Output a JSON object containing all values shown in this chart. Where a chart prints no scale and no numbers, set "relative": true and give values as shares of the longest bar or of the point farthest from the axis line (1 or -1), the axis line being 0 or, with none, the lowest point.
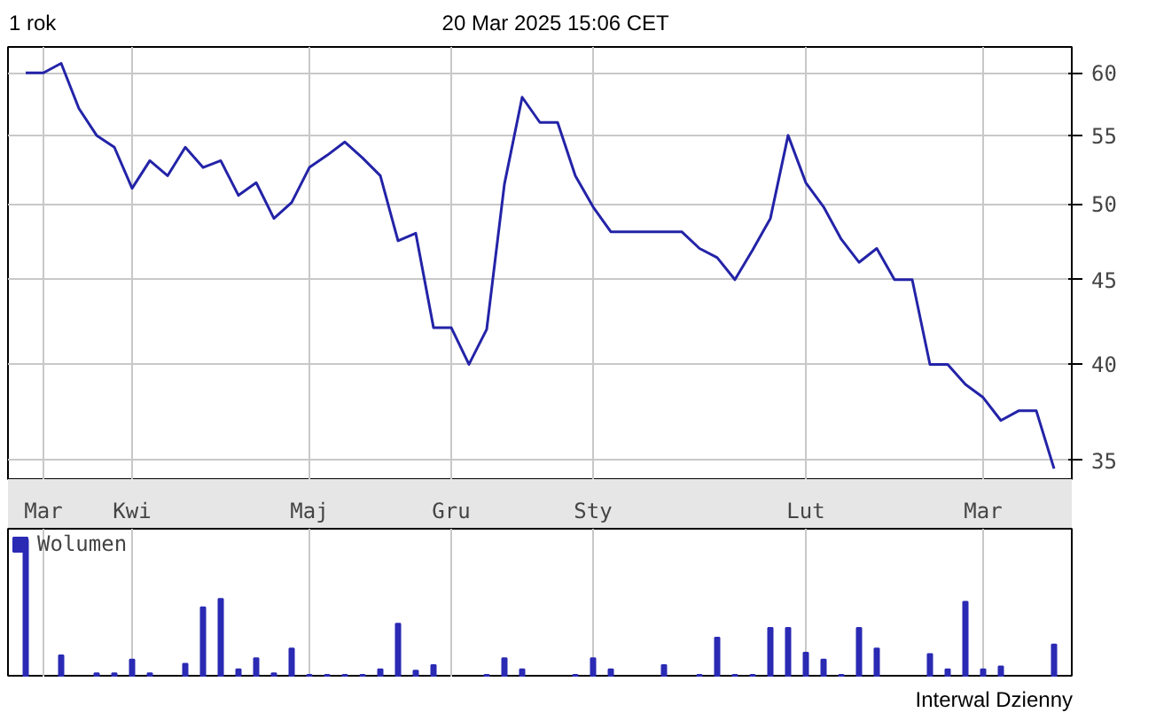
{
  "chart_data": [
    {
      "type": "line",
      "title": "1 rok",
      "annotations": [
        "20 Mar 2025 15:06 CET"
      ],
      "categories": [
        null,
        "Mar",
        null,
        null,
        null,
        null,
        "Kwi",
        null,
        null,
        null,
        null,
        null,
        null,
        null,
        null,
        null,
        "Maj",
        null,
        null,
        null,
        null,
        null,
        null,
        null,
        "Gru",
        null,
        null,
        null,
        null,
        null,
        null,
        null,
        "Sty",
        null,
        null,
        null,
        null,
        null,
        null,
        null,
        null,
        null,
        null,
        null,
        "Lut",
        null,
        null,
        null,
        null,
        null,
        null,
        null,
        null,
        null,
        "Mar",
        null,
        null,
        null,
        null
      ],
      "series": [
        {
          "color": "#2323a8",
          "values": [
            60,
            60,
            60.8,
            57.1,
            55,
            54.1,
            51.1,
            53.1,
            52,
            54.1,
            52.6,
            53.1,
            50.6,
            51.5,
            49,
            50.1,
            52.6,
            53.5,
            54.5,
            53.3,
            52,
            47.5,
            48,
            42.1,
            42.1,
            40,
            42,
            51.4,
            58,
            56,
            56,
            52,
            49.8,
            48.1,
            48.1,
            48.1,
            48.1,
            48.1,
            47,
            46.4,
            45,
            46.9,
            49,
            55,
            51.5,
            49.8,
            47.6,
            46.1,
            47,
            45,
            45,
            40,
            40,
            38.9,
            38.2,
            37,
            37.5,
            37.5,
            34.6
          ]
        }
      ],
      "log": "y",
      "ylim": [
        34.1,
        62.2
      ],
      "yticks": [
        35,
        40,
        45,
        50,
        55,
        60
      ],
      "grid": true,
      "line_style": "solid"
    },
    {
      "type": "bar",
      "relative": true,
      "annotations": [
        "Interwal Dzienny"
      ],
      "legend": "top left",
      "tick_labels": false,
      "categories": [
        null,
        null,
        null,
        null,
        null,
        null,
        null,
        null,
        null,
        null,
        null,
        null,
        null,
        null,
        null,
        null,
        null,
        null,
        null,
        null,
        null,
        null,
        null,
        null,
        null,
        null,
        null,
        null,
        null,
        null,
        null,
        null,
        null,
        null,
        null,
        null,
        null,
        null,
        null,
        null,
        null,
        null,
        null,
        null,
        null,
        null,
        null,
        null,
        null,
        null,
        null,
        null,
        null,
        null,
        null,
        null,
        null,
        null,
        null
      ],
      "grid": "x",
      "series": [
        {
          "name": "Wolumen",
          "color": "#2a2ab4",
          "values": [
            1,
            0,
            0.16,
            0,
            0.03,
            0.03,
            0.13,
            0.03,
            0,
            0.1,
            0.51,
            0.57,
            0.06,
            0.14,
            0.03,
            0.21,
            0.02,
            0.02,
            0.02,
            0.02,
            0.06,
            0.39,
            0.05,
            0.09,
            0,
            0,
            0.02,
            0.14,
            0.06,
            0,
            0,
            0.02,
            0.14,
            0.06,
            0,
            0,
            0.09,
            0,
            0.02,
            0.29,
            0.02,
            0.02,
            0.36,
            0.36,
            0.18,
            0.13,
            0.02,
            0.36,
            0.21,
            0,
            0,
            0.17,
            0.06,
            0.55,
            0.06,
            0.08,
            0,
            0,
            0.24
          ]
        }
      ]
    }
  ]
}
